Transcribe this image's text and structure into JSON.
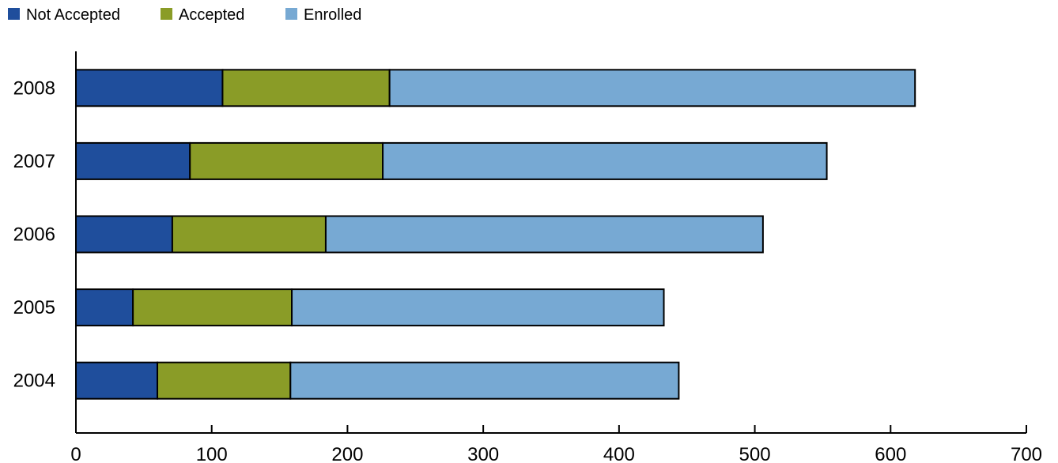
{
  "chart_data": {
    "type": "bar",
    "orientation": "horizontal",
    "stacked": true,
    "categories": [
      "2008",
      "2007",
      "2006",
      "2005",
      "2004"
    ],
    "series": [
      {
        "name": "Not Accepted",
        "color": "#1f4e9c",
        "values": [
          108,
          84,
          71,
          42,
          60
        ]
      },
      {
        "name": "Accepted",
        "color": "#8a9c27",
        "values": [
          123,
          142,
          113,
          117,
          98
        ]
      },
      {
        "name": "Enrolled",
        "color": "#77a9d3",
        "values": [
          387,
          327,
          322,
          274,
          286
        ]
      }
    ],
    "xlim": [
      0,
      700
    ],
    "xticks": [
      "0",
      "100",
      "200",
      "300",
      "400",
      "500",
      "600",
      "700"
    ],
    "title": "",
    "xlabel": "",
    "ylabel": "",
    "grid": false,
    "legend": "top-left"
  }
}
